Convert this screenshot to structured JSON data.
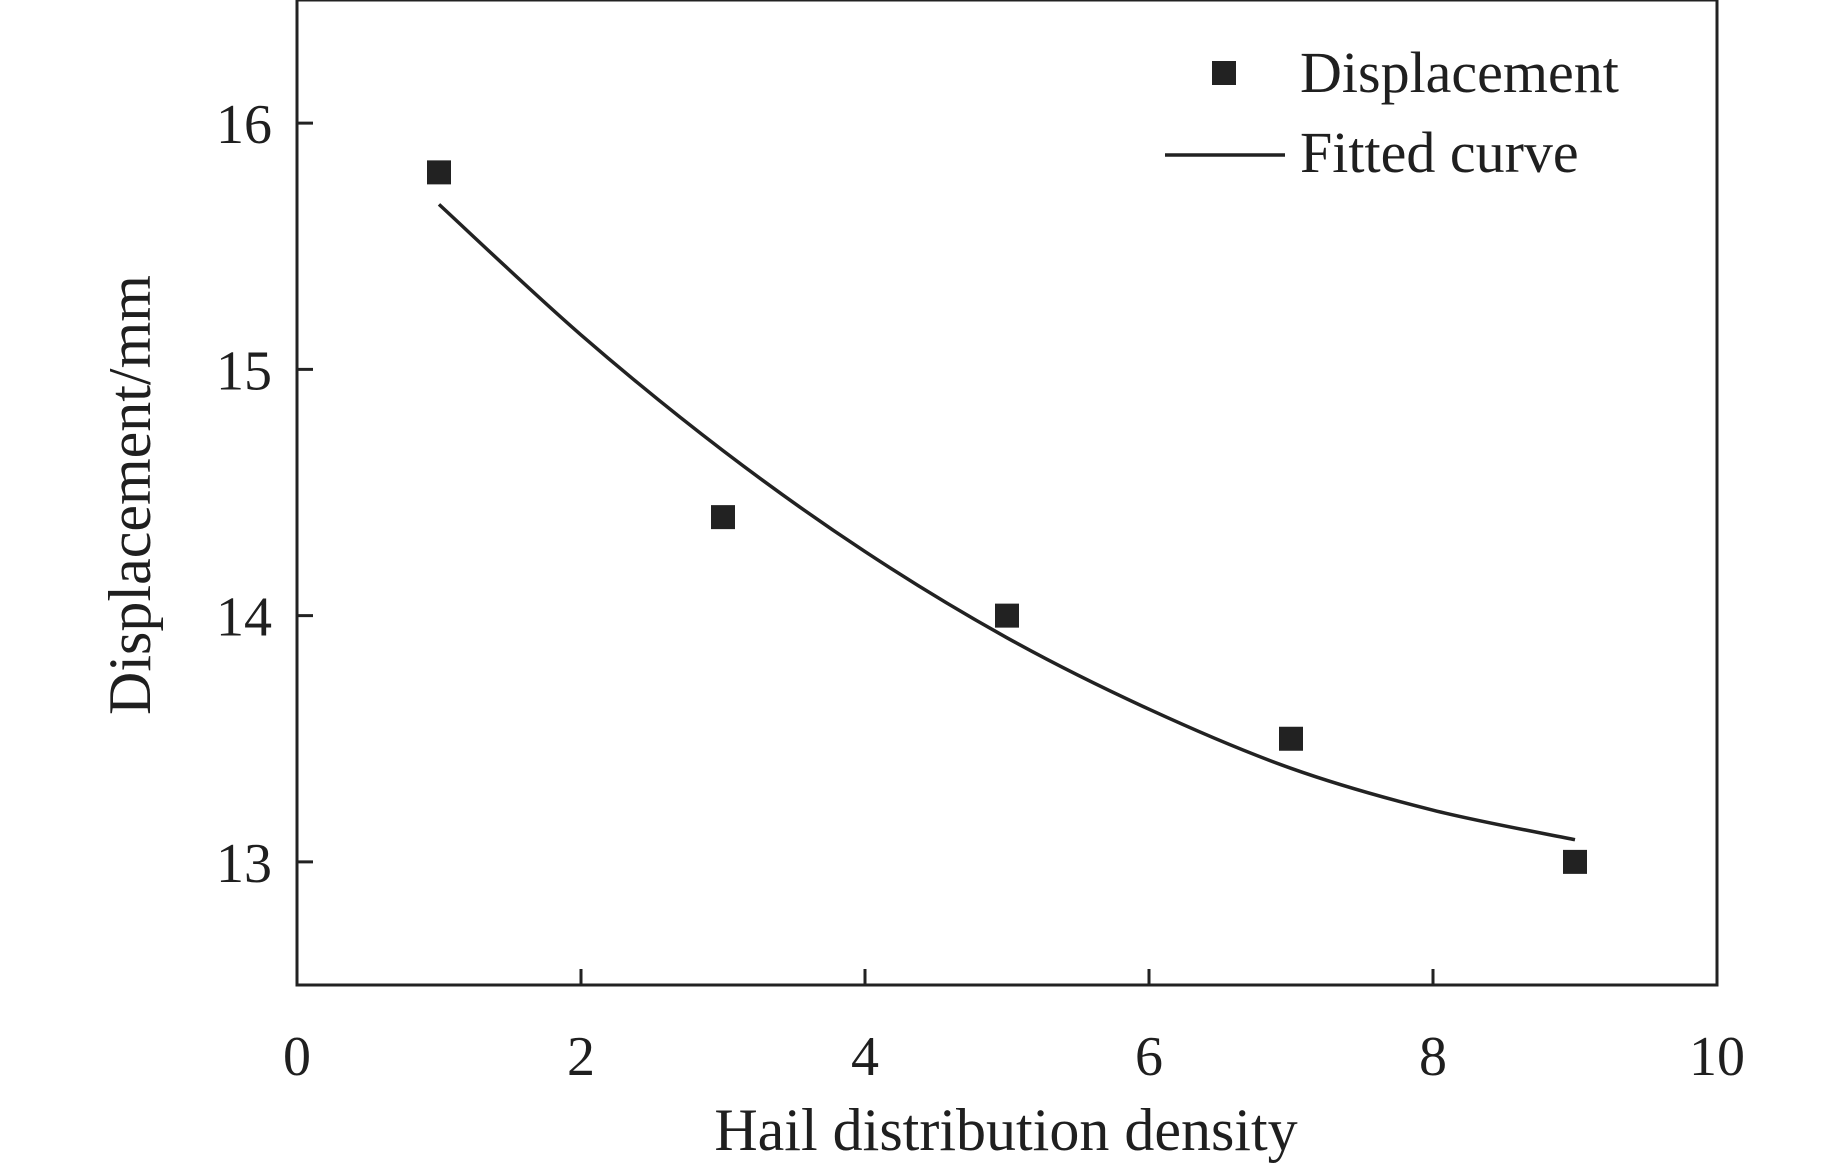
{
  "chart_data": {
    "type": "scatter",
    "xlabel": "Hail distribution density",
    "ylabel": "Displacement/mm",
    "xlim": [
      0,
      10
    ],
    "ylim": [
      12.5,
      16.5
    ],
    "x_ticks": [
      "0",
      "2",
      "4",
      "6",
      "8",
      "10"
    ],
    "y_ticks": [
      "13",
      "14",
      "15",
      "16"
    ],
    "grid": false,
    "legend_position": "top-right",
    "colors": {
      "axis": "#222222",
      "marker": "#222222",
      "curve": "#222222"
    },
    "series": [
      {
        "name": "Displacement",
        "type": "scatter",
        "marker": "square",
        "x": [
          1,
          3,
          5,
          7,
          9
        ],
        "y": [
          15.8,
          14.4,
          14.0,
          13.5,
          13.0
        ]
      },
      {
        "name": "Fitted curve",
        "type": "line",
        "x": [
          1,
          2,
          3,
          4,
          5,
          6,
          7,
          8,
          9
        ],
        "y": [
          15.67,
          15.14,
          14.67,
          14.26,
          13.91,
          13.62,
          13.38,
          13.21,
          13.09
        ]
      }
    ]
  }
}
